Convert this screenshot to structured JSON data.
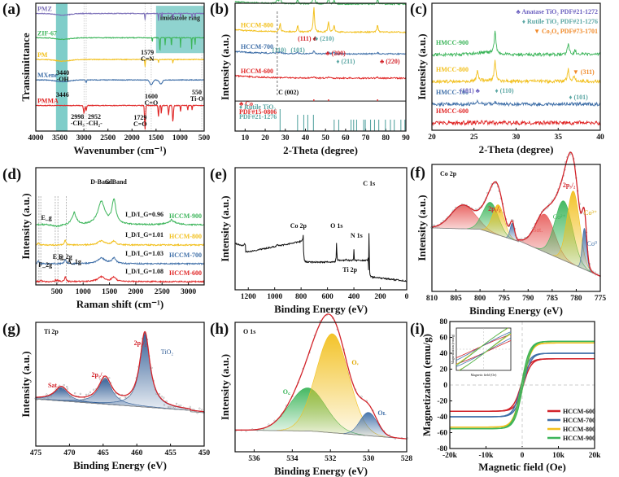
{
  "chart_data": [
    {
      "id": "a",
      "panel_label": "(a)",
      "type": "line",
      "xlabel": "Wavenumber (cm⁻¹)",
      "ylabel": "Transimittance",
      "xlim": [
        4000,
        500
      ],
      "xticks": [
        "4000",
        "3500",
        "3000",
        "2500",
        "2000",
        "1500",
        "1000",
        "500"
      ],
      "xtick_values": [
        4000,
        3500,
        3000,
        2500,
        2000,
        1500,
        1000,
        500
      ],
      "series": [
        {
          "name": "PMZ",
          "color": "#7b6fb8",
          "offset": 0.92
        },
        {
          "name": "ZIF-67",
          "color": "#3cb55a",
          "offset": 0.73
        },
        {
          "name": "PM",
          "color": "#f2c01e",
          "offset": 0.56
        },
        {
          "name": "MXene",
          "color": "#3f6fa8",
          "offset": 0.4
        },
        {
          "name": "PMMA",
          "color": "#e02525",
          "offset": 0.2
        }
      ],
      "highlight_bands": [
        {
          "from": 3580,
          "to": 3340,
          "label": ""
        },
        {
          "from": 1500,
          "to": 500,
          "label": "imidazole ring",
          "y_from": 0.61,
          "y_to": 0.98
        }
      ],
      "annotations": [
        {
          "text": "3440",
          "x": 3440
        },
        {
          "text": "-OH",
          "x": 3440
        },
        {
          "text": "3446",
          "x": 3446
        },
        {
          "text": "1579",
          "x": 1579
        },
        {
          "text": "C=N",
          "x": 1579
        },
        {
          "text": "1600",
          "x": 1600
        },
        {
          "text": "C=O",
          "x": 1600
        },
        {
          "text": "550",
          "x": 550
        },
        {
          "text": "Ti-O",
          "x": 550
        },
        {
          "text": "2998",
          "x": 2998
        },
        {
          "text": "-CH₃",
          "x": 2998
        },
        {
          "text": "2952",
          "x": 2952
        },
        {
          "text": "-CH₂-",
          "x": 2952
        },
        {
          "text": "1729",
          "x": 1729
        },
        {
          "text": "C=O",
          "x": 1729
        }
      ]
    },
    {
      "id": "b",
      "panel_label": "(b)",
      "type": "line",
      "xlabel": "2-Theta (degree)",
      "ylabel": "Intensity (a.u.)",
      "xlim": [
        5,
        90
      ],
      "xticks": [
        "10",
        "20",
        "30",
        "40",
        "50",
        "60",
        "70",
        "80",
        "90"
      ],
      "xtick_values": [
        10,
        20,
        30,
        40,
        50,
        60,
        70,
        80,
        90
      ],
      "series": [
        {
          "name": "HCCM-900",
          "color": "#3cb55a",
          "peaks": [
            [
              26,
              0.3
            ],
            [
              27.4,
              0.5
            ],
            [
              36.1,
              0.3
            ],
            [
              44.2,
              1.0
            ],
            [
              51.5,
              0.4
            ],
            [
              54.3,
              0.25
            ],
            [
              75.9,
              0.3
            ]
          ]
        },
        {
          "name": "HCCM-800",
          "color": "#f2c01e",
          "peaks": [
            [
              27.4,
              0.4
            ],
            [
              36.1,
              0.3
            ],
            [
              44.2,
              1.2
            ],
            [
              51.5,
              0.5
            ],
            [
              54.3,
              0.3
            ],
            [
              75.9,
              0.35
            ]
          ]
        },
        {
          "name": "HCCM-700",
          "color": "#3f6fa8",
          "peaks": [
            [
              26,
              0.2
            ],
            [
              27.4,
              0.2
            ],
            [
              36.1,
              0.15
            ],
            [
              44.2,
              0.4
            ],
            [
              51.5,
              0.2
            ],
            [
              54.3,
              0.15
            ],
            [
              75.9,
              0.15
            ]
          ]
        },
        {
          "name": "HCCM-600",
          "color": "#e02525",
          "peaks": [
            [
              26,
              0.1
            ],
            [
              44.2,
              0.3
            ],
            [
              51.5,
              0.2
            ],
            [
              75.9,
              0.2
            ]
          ]
        }
      ],
      "reference_co": {
        "label": "Co",
        "pdf": "PDF#15-0806",
        "color": "#e02525",
        "lines": [
          44.2,
          51.5,
          75.9
        ]
      },
      "reference_rutile": {
        "label": "Rutile TiO₂",
        "pdf": "PDF#21-1276",
        "color": "#5aa6a3",
        "lines": [
          27.4,
          36.1,
          39.2,
          41.2,
          44.0,
          54.3,
          56.6,
          62.7,
          64.0,
          65.5,
          69.0,
          69.8,
          72.4,
          74.4,
          76.5,
          79.8,
          82.3,
          84.2,
          87.5,
          89.5
        ]
      },
      "annotations": [
        "(111)",
        "/",
        "(210)",
        "(110)",
        "(101)",
        "(200)",
        "(211)",
        "(220)",
        "C (002)"
      ]
    },
    {
      "id": "c",
      "panel_label": "(c)",
      "type": "line",
      "xlabel": "2-Theta (degree)",
      "ylabel": "Intensity (a.u.)",
      "xlim": [
        20,
        40
      ],
      "xticks": [
        "20",
        "25",
        "30",
        "35",
        "40"
      ],
      "xtick_values": [
        20,
        25,
        30,
        35,
        40
      ],
      "series": [
        {
          "name": "HMCC-900",
          "color": "#3cb55a",
          "peaks": [
            [
              27.5,
              1.0
            ],
            [
              36.2,
              0.5
            ],
            [
              37.0,
              0.2
            ]
          ],
          "hump": [
            26,
            0.25
          ]
        },
        {
          "name": "HMCC-800",
          "color": "#f2c01e",
          "peaks": [
            [
              25.4,
              0.5
            ],
            [
              27.5,
              1.0
            ],
            [
              36.2,
              0.6
            ],
            [
              36.9,
              0.3
            ]
          ],
          "hump": [
            26,
            0.1
          ]
        },
        {
          "name": "HMCC-700",
          "color": "#3f6fa8",
          "peaks": [
            [
              25.4,
              0.25
            ],
            [
              27.5,
              0.2
            ],
            [
              36.2,
              0.15
            ]
          ],
          "hump": [
            26,
            0.05
          ]
        },
        {
          "name": "HMCC-600",
          "color": "#e02525",
          "peaks": [],
          "hump": [
            26,
            0.05
          ]
        }
      ],
      "legend": [
        {
          "marker": "♣",
          "label": "Anatase TiO₂",
          "pdf": "PDF#21-1272",
          "color": "#6a5fbf"
        },
        {
          "marker": "♦",
          "label": "Rutile TiO₂",
          "pdf": "PDF#21-1276",
          "color": "#5aa6a3"
        },
        {
          "marker": "▼",
          "label": "Co₃O₄",
          "pdf": "PDF#73-1701",
          "color": "#f08a2a"
        }
      ],
      "legend_position": "top-right",
      "annotations": [
        "(101)",
        "(110)",
        "(101)",
        "(311)"
      ]
    },
    {
      "id": "d",
      "panel_label": "(d)",
      "type": "line",
      "xlabel": "Raman shift (cm⁻¹)",
      "ylabel": "Intensity (a.u.)",
      "xlim": [
        100,
        3300
      ],
      "xticks": [
        "500",
        "1000",
        "1500",
        "2000",
        "2500",
        "3000"
      ],
      "xtick_values": [
        500,
        1000,
        1500,
        2000,
        2500,
        3000
      ],
      "series": [
        {
          "name": "HCCM-900",
          "color": "#3cb55a",
          "ratio": "I_D/I_G=0.96",
          "d": 1.0,
          "g": 1.05,
          "extra": [
            [
              830,
              0.25
            ],
            [
              2680,
              0.12
            ]
          ]
        },
        {
          "name": "HCCM-800",
          "color": "#f2c01e",
          "ratio": "I_D/I_G=1.01",
          "d": 0.35,
          "g": 0.32,
          "extra": [
            [
              150,
              0.2
            ],
            [
              660,
              0.45
            ]
          ]
        },
        {
          "name": "HCCM-700",
          "color": "#3f6fa8",
          "ratio": "I_D/I_G=1.03",
          "d": 0.45,
          "g": 0.42,
          "extra": [
            [
              150,
              0.2
            ],
            [
              660,
              0.35
            ]
          ]
        },
        {
          "name": "HCCM-600",
          "color": "#e02525",
          "ratio": "I_D/I_G=1.08",
          "d": 0.42,
          "g": 0.4,
          "extra": [
            [
              195,
              0.1
            ],
            [
              480,
              0.1
            ],
            [
              520,
              0.1
            ],
            [
              660,
              0.4
            ]
          ]
        }
      ],
      "band_labels": [
        "D-Band",
        "G-Band"
      ],
      "mode_labels": [
        "E_g",
        "E_g",
        "F_2g",
        "A_1g",
        "F_2g"
      ],
      "dashed_lines": [
        160,
        195,
        470,
        520,
        680
      ]
    },
    {
      "id": "e",
      "panel_label": "(e)",
      "type": "line",
      "xlabel": "Binding Energy (eV)",
      "ylabel": "Intensity (a.u.)",
      "xlim": [
        1300,
        0
      ],
      "xticks": [
        "1200",
        "1000",
        "800",
        "600",
        "400",
        "200",
        "0"
      ],
      "xtick_values": [
        1200,
        1000,
        800,
        600,
        400,
        200,
        0
      ],
      "color": "#111111",
      "peak_labels": [
        {
          "text": "C 1s",
          "x": 285
        },
        {
          "text": "O 1s",
          "x": 531
        },
        {
          "text": "N 1s",
          "x": 400
        },
        {
          "text": "Co 2p",
          "x": 781
        },
        {
          "text": "Ti 2p",
          "x": 459
        }
      ]
    },
    {
      "id": "f",
      "panel_label": "(f)",
      "type": "area",
      "title": "Co 2p",
      "xlabel": "Binding Energy (eV)",
      "ylabel": "Intensity (a.u.)",
      "xlim": [
        810,
        775
      ],
      "xticks": [
        "810",
        "805",
        "800",
        "795",
        "790",
        "785",
        "780",
        "775"
      ],
      "xtick_values": [
        810,
        805,
        800,
        795,
        790,
        785,
        780,
        775
      ],
      "components": [
        {
          "name": "Sat.",
          "center": 803.5,
          "height": 0.22,
          "width": 2.5,
          "color": "#e8605e"
        },
        {
          "name": "Co²⁺",
          "center": 797.8,
          "height": 0.28,
          "width": 1.6,
          "color": "#3cb55a"
        },
        {
          "name": "Co³⁺",
          "center": 796.2,
          "height": 0.28,
          "width": 1.2,
          "color": "#f2c01e"
        },
        {
          "name": "Co⁰",
          "center": 793.3,
          "height": 0.15,
          "width": 0.45,
          "color": "#3f6fa8"
        },
        {
          "name": "Sat.",
          "center": 786.5,
          "height": 0.35,
          "width": 2.0,
          "color": "#e8605e"
        },
        {
          "name": "Co²⁺",
          "center": 782.6,
          "height": 0.55,
          "width": 1.8,
          "color": "#3cb55a"
        },
        {
          "name": "Co³⁺",
          "center": 780.6,
          "height": 0.68,
          "width": 1.3,
          "color": "#f2c01e"
        },
        {
          "name": "Co⁰",
          "center": 778.3,
          "height": 0.38,
          "width": 0.45,
          "color": "#3f6fa8"
        }
      ],
      "labels": [
        "2p1/2",
        "2p3/2",
        "Sat.",
        "Co²⁺",
        "Co³⁺",
        "Co⁰"
      ],
      "envelope_color": "#d2232a"
    },
    {
      "id": "g",
      "panel_label": "(g)",
      "type": "area",
      "title": "Ti 2p",
      "xlabel": "Binding Energy (eV)",
      "ylabel": "Intensity (a.u.)",
      "xlim": [
        475,
        450
      ],
      "xticks": [
        "475",
        "470",
        "465",
        "460",
        "455",
        "450"
      ],
      "xtick_values": [
        475,
        470,
        465,
        460,
        455,
        450
      ],
      "components": [
        {
          "name": "Sat.",
          "center": 471.2,
          "height": 0.18,
          "width": 1.2,
          "color": "#2d5a94"
        },
        {
          "name": "2p1/2",
          "center": 464.7,
          "height": 0.35,
          "width": 1.2,
          "color": "#2d5a94"
        },
        {
          "name": "2p3/2",
          "center": 458.8,
          "height": 1.0,
          "width": 0.9,
          "color": "#2d5a94"
        }
      ],
      "labels": [
        "Sat.",
        "2p1/2",
        "2p3/2",
        "TiO₂"
      ],
      "envelope_color": "#d2232a"
    },
    {
      "id": "h",
      "panel_label": "(h)",
      "type": "area",
      "title": "O 1s",
      "xlabel": "Binding Energy (eV)",
      "ylabel": "Intensity (a.u.)",
      "xlim": [
        537,
        528
      ],
      "xticks": [
        "536",
        "534",
        "532",
        "530",
        "528"
      ],
      "xtick_values": [
        536,
        534,
        532,
        530,
        528
      ],
      "components": [
        {
          "name": "O_C",
          "center": 533.2,
          "height": 0.37,
          "width": 0.95,
          "color": "#3cb55a"
        },
        {
          "name": "O_V",
          "center": 531.9,
          "height": 0.85,
          "width": 0.85,
          "color": "#f2c01e"
        },
        {
          "name": "O_L",
          "center": 530.0,
          "height": 0.2,
          "width": 0.45,
          "color": "#3f6fa8"
        }
      ],
      "labels": [
        "O_C",
        "O_V",
        "O_L"
      ],
      "envelope_color": "#d2232a"
    },
    {
      "id": "i",
      "panel_label": "(i)",
      "type": "line",
      "xlabel": "Magnetic field (Oe)",
      "ylabel": "Magnetization (emu/g)",
      "xlim": [
        -20000,
        20000
      ],
      "ylim": [
        -80,
        80
      ],
      "xticks": [
        "-20k",
        "-10k",
        "0",
        "10k",
        "20k"
      ],
      "xtick_values": [
        -20000,
        -10000,
        0,
        10000,
        20000
      ],
      "yticks": [
        "80",
        "60",
        "40",
        "20",
        "0",
        "-20",
        "-40",
        "-60",
        "-80"
      ],
      "ytick_values": [
        80,
        60,
        40,
        20,
        0,
        -20,
        -40,
        -60,
        -80
      ],
      "series": [
        {
          "name": "HCCM-600",
          "color": "#d2232a",
          "ms": 33,
          "hc": 300
        },
        {
          "name": "HCCM-700",
          "color": "#3f6fa8",
          "ms": 40,
          "hc": 250
        },
        {
          "name": "HCCM-800",
          "color": "#f2c01e",
          "ms": 53,
          "hc": 220
        },
        {
          "name": "HCCM-900",
          "color": "#3cb55a",
          "ms": 55,
          "hc": 200
        }
      ],
      "legend_position": "bottom-right",
      "inset": {
        "xlabel": "Magnetic field (Oe)",
        "ylabel": "Magnetization (emu/g)"
      }
    }
  ]
}
